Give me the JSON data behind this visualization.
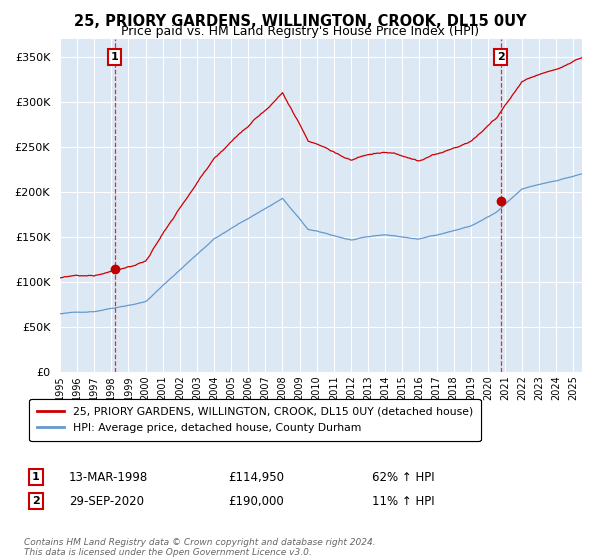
{
  "title1": "25, PRIORY GARDENS, WILLINGTON, CROOK, DL15 0UY",
  "title2": "Price paid vs. HM Land Registry's House Price Index (HPI)",
  "legend1": "25, PRIORY GARDENS, WILLINGTON, CROOK, DL15 0UY (detached house)",
  "legend2": "HPI: Average price, detached house, County Durham",
  "sale1_label": "1",
  "sale1_date": "13-MAR-1998",
  "sale1_price": "£114,950",
  "sale1_hpi": "62% ↑ HPI",
  "sale1_year": 1998.2,
  "sale1_value": 114950,
  "sale2_label": "2",
  "sale2_date": "29-SEP-2020",
  "sale2_price": "£190,000",
  "sale2_hpi": "11% ↑ HPI",
  "sale2_year": 2020.75,
  "sale2_value": 190000,
  "footer": "Contains HM Land Registry data © Crown copyright and database right 2024.\nThis data is licensed under the Open Government Licence v3.0.",
  "background_color": "#dce9f5",
  "red_line_color": "#cc0000",
  "blue_line_color": "#6699cc",
  "ylim": [
    0,
    370000
  ],
  "xlim_start": 1995.0,
  "xlim_end": 2025.5
}
